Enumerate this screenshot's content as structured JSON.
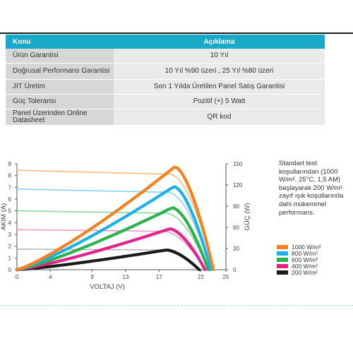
{
  "table": {
    "headers": [
      "Konu",
      "Açıklama"
    ],
    "rows": [
      {
        "label": "Ürün Garantisi",
        "value": "10 Yıl"
      },
      {
        "label": "Doğrusal Performans Garantisi",
        "value": "10 Yıl %90 üzeri , 25 Yıl %80 üzeri"
      },
      {
        "label": "JIT Üretim",
        "value": "Son 1 Yılda Üretilen Panel Satış Garantisi"
      },
      {
        "label": "Güç Toleransı",
        "value": "Pozitif (+) 5 Watt"
      },
      {
        "label": "Panel Üzerinden Online Datasheet",
        "value": "QR kod"
      }
    ]
  },
  "note": "Standart test koşullarından (1000 W/m², 25°C, 1,5 AM) başlayarak 200 W/m² zayıf ışık koşullarında dahi mükemmel performans.",
  "colors": {
    "header": "#19a9c9",
    "label_cell": "#d6d8d8",
    "value_cell": "#e9eaea"
  },
  "chart_data": {
    "type": "line",
    "xlabel": "VOLTAJ (V)",
    "ylabel": "AKIM (A)",
    "y2label": "GÜÇ (W)",
    "xlim": [
      0,
      25
    ],
    "ylim": [
      0,
      9
    ],
    "y2lim": [
      0,
      150
    ],
    "xticks": [
      0,
      4,
      9,
      13,
      17,
      22,
      25
    ],
    "yticks": [
      0,
      1,
      2,
      3,
      4,
      5,
      6,
      7,
      8,
      9
    ],
    "y2ticks": [
      0,
      30,
      60,
      90,
      120,
      150
    ],
    "grid": false,
    "legend_position": "right",
    "series": [
      {
        "name": "1000 W/m²",
        "color": "#f58220",
        "light": "#f9b978",
        "isc": 8.45,
        "voc": 23.5,
        "pmax": 146,
        "vmp": 18.9
      },
      {
        "name": "800 W/m²",
        "color": "#1eb0e8",
        "light": "#84d4f2",
        "isc": 6.85,
        "voc": 23.2,
        "pmax": 118,
        "vmp": 18.8
      },
      {
        "name": "600 W/m²",
        "color": "#2bb24c",
        "light": "#8fd49c",
        "isc": 5.0,
        "voc": 22.9,
        "pmax": 88,
        "vmp": 18.6
      },
      {
        "name": "400 W/m²",
        "color": "#e5218b",
        "light": "#f097c4",
        "isc": 3.4,
        "voc": 22.5,
        "pmax": 58,
        "vmp": 18.3
      },
      {
        "name": "200 W/m²",
        "color": "#1a1a1a",
        "light": "#b8b8b8",
        "isc": 1.75,
        "voc": 21.8,
        "pmax": 28,
        "vmp": 17.9
      }
    ]
  }
}
